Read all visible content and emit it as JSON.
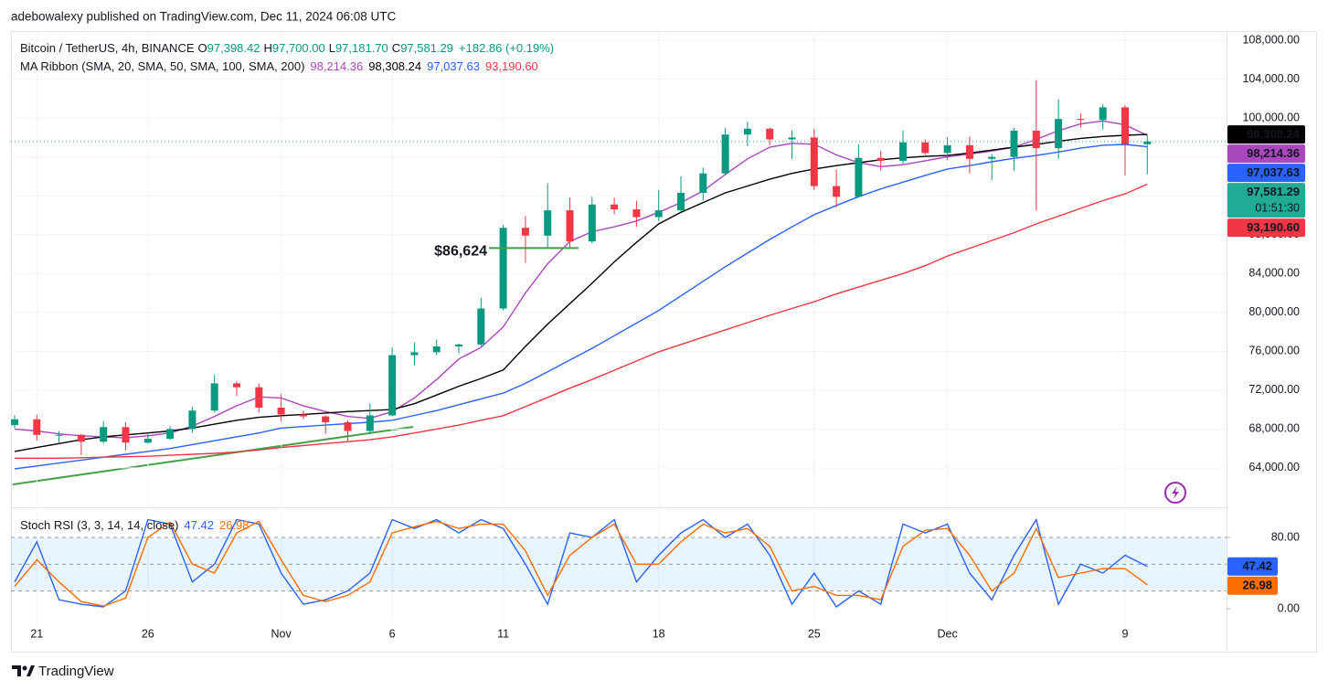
{
  "header": {
    "byline": "adebowalexy published on TradingView.com, Dec 11, 2024 06:08 UTC"
  },
  "chart_data": [
    {
      "type": "candlestick",
      "symbol": "Bitcoin / TetherUS, 4h, BINANCE",
      "ohlc_labels": [
        {
          "key": "O",
          "value": 97398.42,
          "label": "97,398.42"
        },
        {
          "key": "H",
          "value": 97700.0,
          "label": "97,700.00"
        },
        {
          "key": "L",
          "value": 97181.7,
          "label": "97,181.70"
        },
        {
          "key": "C",
          "value": 97581.29,
          "label": "97,581.29"
        }
      ],
      "change": "+182.86 (+0.19%)",
      "indicator": "MA Ribbon (SMA, 20, SMA, 50, SMA, 100, SMA, 200)",
      "categories": [
        null,
        "21",
        null,
        null,
        null,
        null,
        "26",
        null,
        null,
        null,
        null,
        null,
        "Nov",
        null,
        null,
        null,
        null,
        "6",
        null,
        null,
        null,
        null,
        "11",
        null,
        null,
        null,
        null,
        null,
        null,
        "18",
        null,
        null,
        null,
        null,
        null,
        null,
        "25",
        null,
        null,
        null,
        null,
        null,
        "Dec",
        null,
        null,
        null,
        null,
        null,
        null,
        null,
        "9",
        null
      ],
      "open": [
        68400,
        69000,
        67400,
        67400,
        66700,
        68200,
        66600,
        67000,
        68000,
        69900,
        72700,
        72300,
        70200,
        69500,
        69300,
        68700,
        67800,
        69400,
        75600,
        75900,
        76500,
        76700,
        80400,
        88700,
        87900,
        90500,
        87300,
        91100,
        90600,
        89800,
        90500,
        92300,
        94300,
        98300,
        98900,
        97800,
        98000,
        93000,
        91900,
        95900,
        95600,
        97500,
        96400,
        97200,
        95800,
        96000,
        98700,
        96900,
        99900,
        99800,
        101100,
        97300
      ],
      "high": [
        69400,
        69500,
        67800,
        67500,
        68800,
        68700,
        67500,
        68300,
        70300,
        73600,
        72900,
        72700,
        71600,
        69900,
        69400,
        68900,
        70600,
        76400,
        76900,
        77200,
        76800,
        81500,
        89000,
        89900,
        93300,
        91800,
        91900,
        91800,
        91500,
        92600,
        94000,
        94900,
        99000,
        99600,
        99000,
        98700,
        98900,
        94700,
        97300,
        96600,
        98700,
        97800,
        98000,
        98100,
        96300,
        99000,
        103900,
        101900,
        100500,
        101400,
        101300,
        98200
      ],
      "low": [
        68100,
        66800,
        66600,
        65300,
        66500,
        65800,
        66500,
        66900,
        67600,
        69700,
        71400,
        69700,
        68800,
        69000,
        67500,
        66800,
        67500,
        69300,
        74500,
        75600,
        75800,
        76500,
        80200,
        85100,
        86600,
        86700,
        87100,
        90100,
        88800,
        89400,
        90400,
        91500,
        94100,
        97100,
        97200,
        95800,
        92600,
        90800,
        91800,
        94600,
        95300,
        96200,
        95700,
        94300,
        93600,
        94600,
        90500,
        95800,
        99000,
        98800,
        94100,
        94200
      ],
      "close": [
        69000,
        67400,
        67400,
        66700,
        68200,
        66600,
        67000,
        68000,
        69900,
        72700,
        72300,
        70200,
        69500,
        69300,
        68700,
        67800,
        69400,
        75600,
        75900,
        76500,
        76700,
        80400,
        88700,
        87900,
        90500,
        87300,
        91100,
        90600,
        89800,
        90500,
        92300,
        94300,
        98300,
        98900,
        97800,
        98000,
        93000,
        91900,
        95900,
        95600,
        97500,
        96400,
        97200,
        95800,
        96000,
        98700,
        96900,
        99900,
        99800,
        101100,
        97300,
        97581.29
      ],
      "up_color": "#089981",
      "down_color": "#f23645",
      "series": [
        {
          "color": "#ab47bc",
          "last_label": "98,214.36",
          "values": [
            68000,
            67800,
            67500,
            67300,
            67200,
            67100,
            67300,
            67600,
            68300,
            69300,
            70400,
            71300,
            71200,
            70400,
            69800,
            69300,
            69100,
            69800,
            71200,
            73100,
            75200,
            76400,
            78500,
            82000,
            85000,
            87300,
            88300,
            88800,
            89400,
            90300,
            91300,
            92500,
            94200,
            95800,
            97000,
            97400,
            97300,
            96200,
            95400,
            95000,
            95200,
            95600,
            96000,
            96300,
            96600,
            97000,
            97800,
            98700,
            99400,
            99700,
            99300,
            98214.36
          ]
        },
        {
          "color": "#000000",
          "last_label": "98,308.24",
          "values": [
            65700,
            66100,
            66500,
            66900,
            67200,
            67400,
            67600,
            67800,
            68100,
            68500,
            68900,
            69200,
            69370,
            69500,
            69650,
            69800,
            69900,
            70000,
            70600,
            71500,
            72400,
            73200,
            74070,
            76500,
            78800,
            80900,
            83000,
            85200,
            87200,
            89100,
            90300,
            91300,
            92300,
            93000,
            93700,
            94300,
            94750,
            95100,
            95400,
            95700,
            95900,
            96050,
            96150,
            96400,
            96700,
            97000,
            97280,
            97600,
            97900,
            98100,
            98220,
            98308.24
          ]
        },
        {
          "color": "#2962ff",
          "last_label": "97,037.63",
          "values": [
            63900,
            64200,
            64500,
            64800,
            65100,
            65400,
            65700,
            66000,
            66400,
            66800,
            67200,
            67600,
            68100,
            68250,
            68400,
            68550,
            68700,
            68900,
            69400,
            69900,
            70500,
            71100,
            71700,
            72700,
            73900,
            75100,
            76300,
            77600,
            78900,
            80200,
            81700,
            83200,
            84700,
            86100,
            87500,
            88800,
            90050,
            91000,
            91900,
            92700,
            93400,
            94100,
            94750,
            95100,
            95500,
            95850,
            96150,
            96500,
            96900,
            97200,
            97280,
            97037.63
          ]
        },
        {
          "color": "#f23645",
          "last_label": "93,190.60",
          "values": [
            65000,
            65000,
            65000,
            65050,
            65100,
            65150,
            65200,
            65300,
            65400,
            65500,
            65650,
            65850,
            66100,
            66300,
            66500,
            66700,
            66900,
            67200,
            67600,
            68000,
            68400,
            68900,
            69370,
            70300,
            71250,
            72200,
            73100,
            74050,
            75000,
            75950,
            76700,
            77450,
            78200,
            78950,
            79700,
            80400,
            81100,
            81900,
            82600,
            83300,
            84000,
            84800,
            85800,
            86600,
            87400,
            88200,
            89100,
            89900,
            90700,
            91500,
            92200,
            93190.6
          ]
        }
      ],
      "last_price": {
        "value": 97581.29,
        "label": "97,581.29"
      },
      "last_price_color": "#22ab94",
      "countdown": "01:51:30",
      "annotation": {
        "text": "$86,624",
        "value": 86624
      },
      "ylim": [
        59950,
        108850
      ],
      "yticks": [
        {
          "value": 108000,
          "label": "108,000.00"
        },
        {
          "value": 104000,
          "label": "104,000.00"
        },
        {
          "value": 100000,
          "label": "100,000.00"
        },
        {
          "value": 96000,
          "label": "96,000.00"
        },
        {
          "value": 92000,
          "label": "92,000.00"
        },
        {
          "value": 88000,
          "label": "88,000.00"
        },
        {
          "value": 84000,
          "label": "84,000.00"
        },
        {
          "value": 80000,
          "label": "80,000.00"
        },
        {
          "value": 76000,
          "label": "76,000.00"
        },
        {
          "value": 72000,
          "label": "72,000.00"
        },
        {
          "value": 68000,
          "label": "68,000.00"
        },
        {
          "value": 64000,
          "label": "64,000.00"
        }
      ],
      "grid": true
    },
    {
      "type": "line",
      "title": "Stoch RSI (3, 3, 14, 14, close)",
      "series": [
        {
          "color": "#2962ff",
          "values": [
            30,
            75,
            10,
            5,
            2,
            20,
            100,
            95,
            30,
            50,
            100,
            95,
            40,
            5,
            10,
            20,
            40,
            100,
            90,
            100,
            85,
            100,
            90,
            50,
            5,
            85,
            80,
            100,
            30,
            60,
            85,
            100,
            80,
            95,
            60,
            5,
            40,
            2,
            20,
            5,
            95,
            85,
            95,
            40,
            10,
            60,
            100,
            5,
            50,
            40,
            60,
            47.42
          ]
        },
        {
          "color": "#ff6d00",
          "values": [
            25,
            55,
            30,
            8,
            3,
            12,
            80,
            97,
            50,
            40,
            85,
            98,
            55,
            15,
            8,
            15,
            30,
            85,
            92,
            98,
            90,
            95,
            95,
            65,
            15,
            60,
            80,
            95,
            50,
            50,
            75,
            95,
            85,
            90,
            70,
            20,
            25,
            15,
            15,
            10,
            70,
            88,
            90,
            60,
            20,
            40,
            90,
            35,
            40,
            45,
            45,
            26.98
          ]
        }
      ],
      "levels": [
        80,
        50,
        20
      ],
      "ylim": [
        -19.5,
        108.7
      ],
      "yticks": [
        {
          "value": 80,
          "label": "80.00"
        },
        {
          "value": 0,
          "label": "0.00"
        }
      ]
    }
  ],
  "footer": {
    "brand": "TradingView"
  }
}
